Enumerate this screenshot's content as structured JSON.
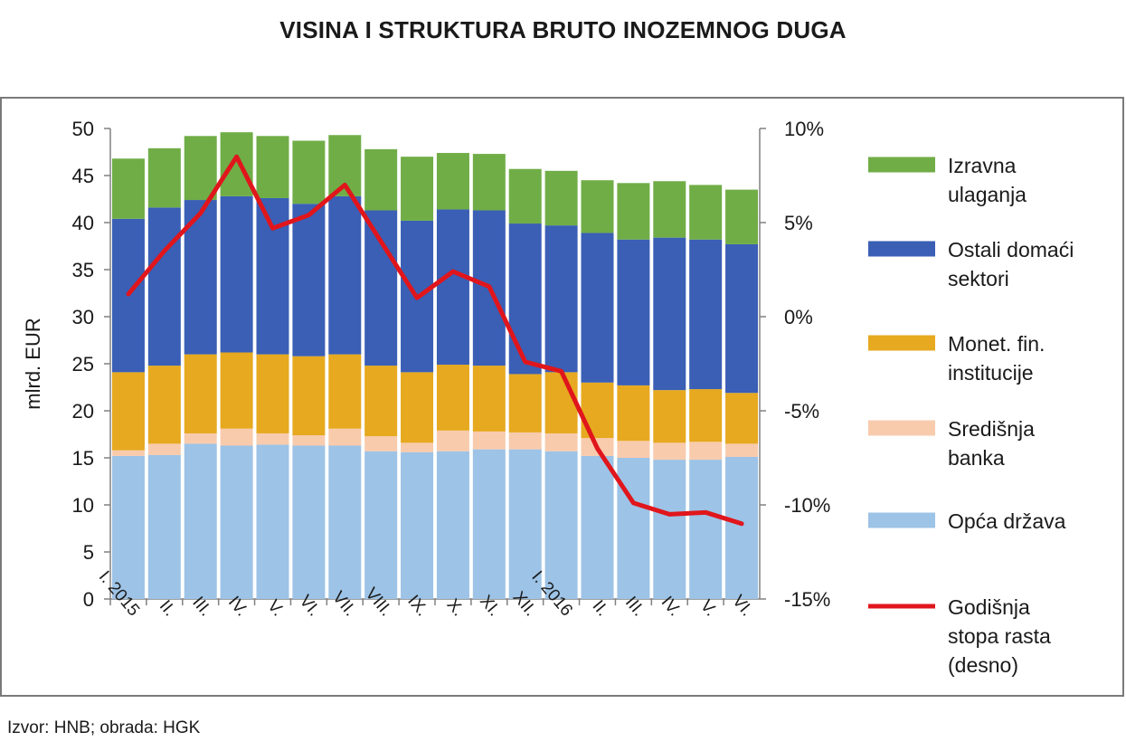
{
  "title": "VISINA I STRUKTURA BRUTO INOZEMNOG DUGA",
  "source": "Izvor: HNB; obrada: HGK",
  "chart_data": {
    "type": "bar",
    "stacked": true,
    "categories": [
      "I. 2015",
      "II.",
      "III.",
      "IV.",
      "V.",
      "VI.",
      "VII.",
      "VIII.",
      "IX.",
      "X.",
      "XI.",
      "XII.",
      "I. 2016",
      "II.",
      "III.",
      "IV.",
      "V.",
      "VI."
    ],
    "ylabel": "mlrd. EUR",
    "ylim": [
      0,
      50
    ],
    "yticks": [
      "0",
      "5",
      "10",
      "15",
      "20",
      "25",
      "30",
      "35",
      "40",
      "45",
      "50"
    ],
    "y2lim": [
      -15,
      10
    ],
    "y2ticks": [
      "-15%",
      "-10%",
      "-5%",
      "0%",
      "5%",
      "10%"
    ],
    "legend_position": "right",
    "series": [
      {
        "name": "Opća država",
        "color": "#9dc3e6",
        "values": [
          15.2,
          15.3,
          16.5,
          16.3,
          16.4,
          16.3,
          16.3,
          15.7,
          15.6,
          15.7,
          15.9,
          15.9,
          15.7,
          15.2,
          15.0,
          14.8,
          14.8,
          15.1
        ]
      },
      {
        "name": "Središnja banka",
        "color": "#f8cbad",
        "values": [
          0.6,
          1.2,
          1.1,
          1.8,
          1.2,
          1.1,
          1.8,
          1.6,
          1.0,
          2.2,
          1.9,
          1.8,
          1.9,
          1.9,
          1.8,
          1.8,
          1.9,
          1.4
        ]
      },
      {
        "name": "Monet. fin. institucije",
        "color": "#e6a91f",
        "values": [
          8.3,
          8.3,
          8.4,
          8.1,
          8.4,
          8.4,
          7.9,
          7.5,
          7.5,
          7.0,
          7.0,
          6.2,
          6.5,
          5.9,
          5.9,
          5.6,
          5.6,
          5.4
        ]
      },
      {
        "name": "Ostali domaći sektori",
        "color": "#3a5fb5",
        "values": [
          16.3,
          16.8,
          16.4,
          16.6,
          16.6,
          16.2,
          16.8,
          16.5,
          16.1,
          16.5,
          16.5,
          16.0,
          15.6,
          15.9,
          15.5,
          16.2,
          15.9,
          15.8
        ]
      },
      {
        "name": "Izravna ulaganja",
        "color": "#70ad47",
        "values": [
          6.4,
          6.3,
          6.8,
          6.8,
          6.6,
          6.7,
          6.5,
          6.5,
          6.8,
          6.0,
          6.0,
          5.8,
          5.8,
          5.6,
          6.0,
          6.0,
          5.8,
          5.8
        ]
      },
      {
        "name": "Godišnja stopa rasta (desno)",
        "color": "#e0161c",
        "type": "line",
        "axis": "right",
        "values": [
          1.2,
          3.5,
          5.5,
          8.5,
          4.7,
          5.4,
          7.0,
          4.0,
          1.0,
          2.4,
          1.6,
          -2.4,
          -2.9,
          -7.0,
          -9.9,
          -10.5,
          -10.4,
          -11.0
        ]
      }
    ]
  }
}
